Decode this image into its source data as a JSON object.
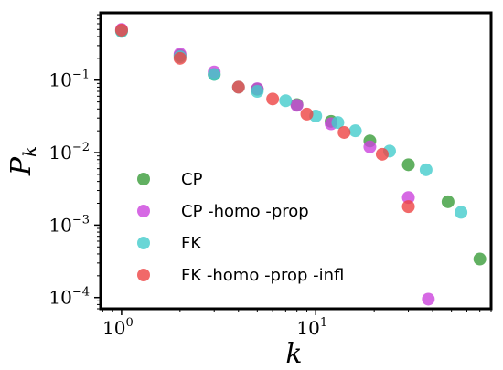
{
  "chart_data": {
    "type": "scatter",
    "xscale": "log",
    "yscale": "log",
    "xlim": [
      0.78,
      80
    ],
    "ylim": [
      7e-05,
      0.85
    ],
    "xlabel": "k",
    "ylabel": "P",
    "ylabel_sub": "k",
    "x_ticks": [
      {
        "value": 1,
        "base": "10",
        "exp": "0"
      },
      {
        "value": 10,
        "base": "10",
        "exp": "1"
      }
    ],
    "y_ticks": [
      {
        "value": 0.0001,
        "base": "10",
        "exp": "−4"
      },
      {
        "value": 0.001,
        "base": "10",
        "exp": "−3"
      },
      {
        "value": 0.01,
        "base": "10",
        "exp": "−2"
      },
      {
        "value": 0.1,
        "base": "10",
        "exp": "−1"
      }
    ],
    "legend_position": "lower-left",
    "series": [
      {
        "name": "CP",
        "color": "#3a9c3a",
        "x": [
          1,
          2,
          3,
          5,
          8,
          12,
          19,
          30,
          48,
          70
        ],
        "y": [
          0.48,
          0.22,
          0.12,
          0.075,
          0.046,
          0.027,
          0.0145,
          0.0068,
          0.0021,
          0.00034
        ]
      },
      {
        "name": "CP -homo -prop",
        "color": "#cc44dd",
        "x": [
          1,
          2,
          3,
          5,
          8,
          12,
          19,
          30,
          38
        ],
        "y": [
          0.5,
          0.23,
          0.13,
          0.076,
          0.045,
          0.025,
          0.012,
          0.0024,
          9.5e-05
        ]
      },
      {
        "name": "FK",
        "color": "#44cccc",
        "x": [
          1,
          2,
          3,
          4,
          5,
          7,
          10,
          13,
          16,
          24,
          37,
          56
        ],
        "y": [
          0.47,
          0.21,
          0.12,
          0.08,
          0.07,
          0.052,
          0.032,
          0.026,
          0.02,
          0.0105,
          0.0058,
          0.0015
        ]
      },
      {
        "name": "FK -homo -prop -infl",
        "color": "#ee4444",
        "x": [
          1,
          2,
          4,
          6,
          9,
          14,
          22,
          30
        ],
        "y": [
          0.49,
          0.2,
          0.08,
          0.055,
          0.034,
          0.019,
          0.0095,
          0.0018
        ]
      }
    ]
  }
}
